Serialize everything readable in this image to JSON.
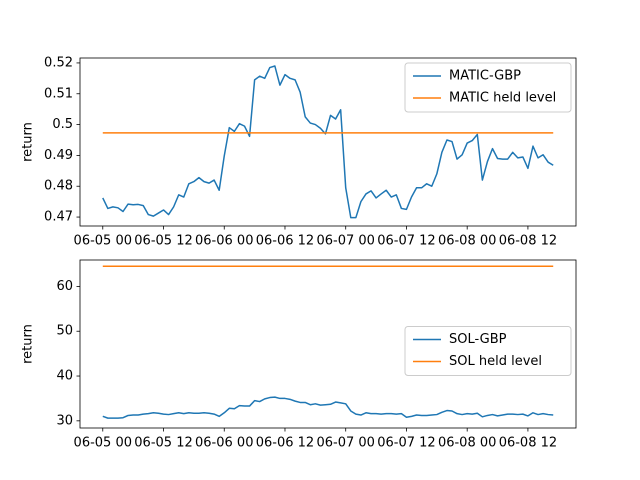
{
  "chart_data": [
    {
      "type": "line",
      "ylabel": "return",
      "x": [
        "06-05 00",
        "06-05 01",
        "06-05 02",
        "06-05 03",
        "06-05 04",
        "06-05 05",
        "06-05 06",
        "06-05 07",
        "06-05 08",
        "06-05 09",
        "06-05 10",
        "06-05 11",
        "06-05 12",
        "06-05 13",
        "06-05 14",
        "06-05 15",
        "06-05 16",
        "06-05 17",
        "06-05 18",
        "06-05 19",
        "06-05 20",
        "06-05 21",
        "06-05 22",
        "06-05 23",
        "06-06 00",
        "06-06 01",
        "06-06 02",
        "06-06 03",
        "06-06 04",
        "06-06 05",
        "06-06 06",
        "06-06 07",
        "06-06 08",
        "06-06 09",
        "06-06 10",
        "06-06 11",
        "06-06 12",
        "06-06 13",
        "06-06 14",
        "06-06 15",
        "06-06 16",
        "06-06 17",
        "06-06 18",
        "06-06 19",
        "06-06 20",
        "06-06 21",
        "06-06 22",
        "06-06 23",
        "06-07 00",
        "06-07 01",
        "06-07 02",
        "06-07 03",
        "06-07 04",
        "06-07 05",
        "06-07 06",
        "06-07 07",
        "06-07 08",
        "06-07 09",
        "06-07 10",
        "06-07 11",
        "06-07 12",
        "06-07 13",
        "06-07 14",
        "06-07 15",
        "06-07 16",
        "06-07 17",
        "06-07 18",
        "06-07 19",
        "06-07 20",
        "06-07 21",
        "06-07 22",
        "06-07 23",
        "06-08 00",
        "06-08 01",
        "06-08 02",
        "06-08 03",
        "06-08 04",
        "06-08 05",
        "06-08 06",
        "06-08 07",
        "06-08 08",
        "06-08 09",
        "06-08 10",
        "06-08 11",
        "06-08 12",
        "06-08 13",
        "06-08 14",
        "06-08 15",
        "06-08 16",
        "06-08 17"
      ],
      "series": [
        {
          "name": "MATIC-GBP",
          "color": "#1f77b4",
          "values": [
            0.4762,
            0.4728,
            0.4733,
            0.473,
            0.4718,
            0.4742,
            0.474,
            0.4741,
            0.4737,
            0.4708,
            0.4703,
            0.4713,
            0.4723,
            0.4708,
            0.4733,
            0.4772,
            0.4765,
            0.4808,
            0.4815,
            0.4828,
            0.4815,
            0.481,
            0.482,
            0.4787,
            0.4898,
            0.499,
            0.4978,
            0.5003,
            0.4995,
            0.4962,
            0.5145,
            0.5157,
            0.515,
            0.5185,
            0.519,
            0.5128,
            0.5162,
            0.515,
            0.5145,
            0.5105,
            0.5025,
            0.5005,
            0.5,
            0.4988,
            0.497,
            0.503,
            0.5018,
            0.5048,
            0.4795,
            0.4698,
            0.4698,
            0.475,
            0.4775,
            0.4785,
            0.4762,
            0.4775,
            0.4787,
            0.4765,
            0.4772,
            0.4728,
            0.4725,
            0.4765,
            0.4795,
            0.4795,
            0.4808,
            0.48,
            0.484,
            0.491,
            0.495,
            0.4945,
            0.4888,
            0.4902,
            0.494,
            0.4948,
            0.4968,
            0.482,
            0.488,
            0.4922,
            0.489,
            0.4888,
            0.4888,
            0.491,
            0.4892,
            0.4895,
            0.4858,
            0.493,
            0.4892,
            0.4902,
            0.4878,
            0.4868
          ]
        },
        {
          "name": "MATIC held level",
          "color": "#ff7f0e",
          "values": [
            0.4973,
            0.4973,
            0.4973,
            0.4973,
            0.4973,
            0.4973,
            0.4973,
            0.4973,
            0.4973,
            0.4973,
            0.4973,
            0.4973,
            0.4973,
            0.4973,
            0.4973,
            0.4973,
            0.4973,
            0.4973,
            0.4973,
            0.4973,
            0.4973,
            0.4973,
            0.4973,
            0.4973,
            0.4973,
            0.4973,
            0.4973,
            0.4973,
            0.4973,
            0.4973,
            0.4973,
            0.4973,
            0.4973,
            0.4973,
            0.4973,
            0.4973,
            0.4973,
            0.4973,
            0.4973,
            0.4973,
            0.4973,
            0.4973,
            0.4973,
            0.4973,
            0.4973,
            0.4973,
            0.4973,
            0.4973,
            0.4973,
            0.4973,
            0.4973,
            0.4973,
            0.4973,
            0.4973,
            0.4973,
            0.4973,
            0.4973,
            0.4973,
            0.4973,
            0.4973,
            0.4973,
            0.4973,
            0.4973,
            0.4973,
            0.4973,
            0.4973,
            0.4973,
            0.4973,
            0.4973,
            0.4973,
            0.4973,
            0.4973,
            0.4973,
            0.4973,
            0.4973,
            0.4973,
            0.4973,
            0.4973,
            0.4973,
            0.4973,
            0.4973,
            0.4973,
            0.4973,
            0.4973,
            0.4973,
            0.4973,
            0.4973,
            0.4973,
            0.4973,
            0.4973
          ]
        }
      ],
      "xlim": [
        "06-04 19:30",
        "06-08 21:30"
      ],
      "xticks": [
        "06-05 00",
        "06-05 12",
        "06-06 00",
        "06-06 12",
        "06-07 00",
        "06-07 12",
        "06-08 00",
        "06-08 12"
      ],
      "ylim": [
        0.4671,
        0.5216
      ],
      "yticks": [
        0.47,
        0.48,
        0.49,
        0.5,
        0.51,
        0.52
      ],
      "legend": "upper right"
    },
    {
      "type": "line",
      "ylabel": "return",
      "x": [
        "06-05 00",
        "06-05 01",
        "06-05 02",
        "06-05 03",
        "06-05 04",
        "06-05 05",
        "06-05 06",
        "06-05 07",
        "06-05 08",
        "06-05 09",
        "06-05 10",
        "06-05 11",
        "06-05 12",
        "06-05 13",
        "06-05 14",
        "06-05 15",
        "06-05 16",
        "06-05 17",
        "06-05 18",
        "06-05 19",
        "06-05 20",
        "06-05 21",
        "06-05 22",
        "06-05 23",
        "06-06 00",
        "06-06 01",
        "06-06 02",
        "06-06 03",
        "06-06 04",
        "06-06 05",
        "06-06 06",
        "06-06 07",
        "06-06 08",
        "06-06 09",
        "06-06 10",
        "06-06 11",
        "06-06 12",
        "06-06 13",
        "06-06 14",
        "06-06 15",
        "06-06 16",
        "06-06 17",
        "06-06 18",
        "06-06 19",
        "06-06 20",
        "06-06 21",
        "06-06 22",
        "06-06 23",
        "06-07 00",
        "06-07 01",
        "06-07 02",
        "06-07 03",
        "06-07 04",
        "06-07 05",
        "06-07 06",
        "06-07 07",
        "06-07 08",
        "06-07 09",
        "06-07 10",
        "06-07 11",
        "06-07 12",
        "06-07 13",
        "06-07 14",
        "06-07 15",
        "06-07 16",
        "06-07 17",
        "06-07 18",
        "06-07 19",
        "06-07 20",
        "06-07 21",
        "06-07 22",
        "06-07 23",
        "06-08 00",
        "06-08 01",
        "06-08 02",
        "06-08 03",
        "06-08 04",
        "06-08 05",
        "06-08 06",
        "06-08 07",
        "06-08 08",
        "06-08 09",
        "06-08 10",
        "06-08 11",
        "06-08 12",
        "06-08 13",
        "06-08 14",
        "06-08 15",
        "06-08 16",
        "06-08 17"
      ],
      "series": [
        {
          "name": "SOL-GBP",
          "color": "#1f77b4",
          "values": [
            31.0,
            30.6,
            30.6,
            30.6,
            30.7,
            31.2,
            31.3,
            31.3,
            31.5,
            31.6,
            31.8,
            31.7,
            31.5,
            31.4,
            31.6,
            31.8,
            31.6,
            31.8,
            31.7,
            31.7,
            31.8,
            31.7,
            31.5,
            31.0,
            31.8,
            32.8,
            32.7,
            33.4,
            33.3,
            33.3,
            34.5,
            34.3,
            34.9,
            35.2,
            35.3,
            35.0,
            35.0,
            34.8,
            34.4,
            34.1,
            34.1,
            33.6,
            33.8,
            33.5,
            33.6,
            33.7,
            34.2,
            34.0,
            33.8,
            32.2,
            31.5,
            31.3,
            31.8,
            31.6,
            31.6,
            31.5,
            31.6,
            31.6,
            31.5,
            31.6,
            30.8,
            31.0,
            31.3,
            31.2,
            31.2,
            31.3,
            31.4,
            31.9,
            32.3,
            32.2,
            31.6,
            31.4,
            31.6,
            31.5,
            31.7,
            30.9,
            31.2,
            31.4,
            31.1,
            31.3,
            31.5,
            31.5,
            31.4,
            31.5,
            31.1,
            31.8,
            31.4,
            31.6,
            31.4,
            31.3
          ]
        },
        {
          "name": "SOL held level",
          "color": "#ff7f0e",
          "values": [
            64.5,
            64.5,
            64.5,
            64.5,
            64.5,
            64.5,
            64.5,
            64.5,
            64.5,
            64.5,
            64.5,
            64.5,
            64.5,
            64.5,
            64.5,
            64.5,
            64.5,
            64.5,
            64.5,
            64.5,
            64.5,
            64.5,
            64.5,
            64.5,
            64.5,
            64.5,
            64.5,
            64.5,
            64.5,
            64.5,
            64.5,
            64.5,
            64.5,
            64.5,
            64.5,
            64.5,
            64.5,
            64.5,
            64.5,
            64.5,
            64.5,
            64.5,
            64.5,
            64.5,
            64.5,
            64.5,
            64.5,
            64.5,
            64.5,
            64.5,
            64.5,
            64.5,
            64.5,
            64.5,
            64.5,
            64.5,
            64.5,
            64.5,
            64.5,
            64.5,
            64.5,
            64.5,
            64.5,
            64.5,
            64.5,
            64.5,
            64.5,
            64.5,
            64.5,
            64.5,
            64.5,
            64.5,
            64.5,
            64.5,
            64.5,
            64.5,
            64.5,
            64.5,
            64.5,
            64.5,
            64.5,
            64.5,
            64.5,
            64.5,
            64.5,
            64.5,
            64.5,
            64.5,
            64.5,
            64.5
          ]
        }
      ],
      "xlim": [
        "06-04 19:30",
        "06-08 21:30"
      ],
      "xticks": [
        "06-05 00",
        "06-05 12",
        "06-06 00",
        "06-06 12",
        "06-07 00",
        "06-07 12",
        "06-08 00",
        "06-08 12"
      ],
      "ylim": [
        28.4,
        65.9
      ],
      "yticks": [
        30,
        40,
        50,
        60
      ],
      "legend": "center right"
    }
  ]
}
